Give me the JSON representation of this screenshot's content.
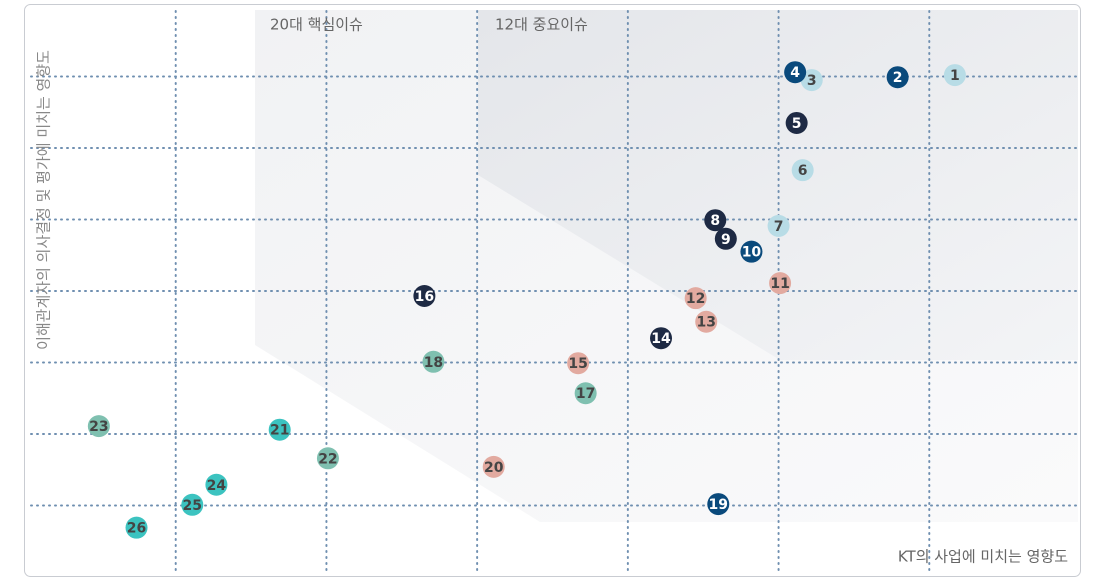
{
  "chart_data": {
    "type": "scatter",
    "zone_labels": [
      "20대 핵심이슈",
      "12대 중요이슈"
    ],
    "x_label": "KT의 사업에 미치는 영향도",
    "y_label": "이해관계자의 의사결정 및 평가에 미치는 영향도",
    "xlim": [
      0,
      7
    ],
    "ylim": [
      0,
      8
    ],
    "xticks": [
      1,
      2,
      3,
      4,
      5,
      6
    ],
    "yticks": [
      1,
      2,
      3,
      4,
      5,
      6,
      7
    ],
    "grid": true,
    "points": [
      {
        "label": "1",
        "x": 6.17,
        "y": 7.02,
        "color": "#b8dce6"
      },
      {
        "label": "2",
        "x": 5.79,
        "y": 6.99,
        "color": "#0a4a7c"
      },
      {
        "label": "3",
        "x": 5.22,
        "y": 6.95,
        "color": "#b8dce6"
      },
      {
        "label": "4",
        "x": 5.11,
        "y": 7.06,
        "color": "#0a4a7c"
      },
      {
        "label": "5",
        "x": 5.12,
        "y": 6.35,
        "color": "#1e2a44"
      },
      {
        "label": "6",
        "x": 5.16,
        "y": 5.69,
        "color": "#b8dce6"
      },
      {
        "label": "7",
        "x": 5.0,
        "y": 4.91,
        "color": "#b8dce6"
      },
      {
        "label": "8",
        "x": 4.58,
        "y": 4.99,
        "color": "#1e2a44"
      },
      {
        "label": "9",
        "x": 4.65,
        "y": 4.73,
        "color": "#1e2a44"
      },
      {
        "label": "10",
        "x": 4.82,
        "y": 4.55,
        "color": "#0a4a7c"
      },
      {
        "label": "11",
        "x": 5.01,
        "y": 4.11,
        "color": "#e2aaa0"
      },
      {
        "label": "12",
        "x": 4.45,
        "y": 3.9,
        "color": "#e2aaa0"
      },
      {
        "label": "13",
        "x": 4.52,
        "y": 3.57,
        "color": "#e2aaa0"
      },
      {
        "label": "14",
        "x": 4.22,
        "y": 3.34,
        "color": "#1e2a44"
      },
      {
        "label": "15",
        "x": 3.67,
        "y": 2.99,
        "color": "#e2aaa0"
      },
      {
        "label": "16",
        "x": 2.65,
        "y": 3.93,
        "color": "#1e2a44"
      },
      {
        "label": "17",
        "x": 3.72,
        "y": 2.57,
        "color": "#7fc0b0"
      },
      {
        "label": "18",
        "x": 2.71,
        "y": 3.01,
        "color": "#7fc0b0"
      },
      {
        "label": "19",
        "x": 4.6,
        "y": 1.02,
        "color": "#0a4a7c"
      },
      {
        "label": "20",
        "x": 3.11,
        "y": 1.54,
        "color": "#e2aaa0"
      },
      {
        "label": "21",
        "x": 1.69,
        "y": 2.06,
        "color": "#3cc3c0"
      },
      {
        "label": "22",
        "x": 2.01,
        "y": 1.66,
        "color": "#7fc0b0"
      },
      {
        "label": "23",
        "x": 0.49,
        "y": 2.11,
        "color": "#7fc0b0"
      },
      {
        "label": "24",
        "x": 1.27,
        "y": 1.29,
        "color": "#3cc3c0"
      },
      {
        "label": "25",
        "x": 1.11,
        "y": 1.01,
        "color": "#3cc3c0"
      },
      {
        "label": "26",
        "x": 0.74,
        "y": 0.69,
        "color": "#3cc3c0"
      }
    ]
  }
}
